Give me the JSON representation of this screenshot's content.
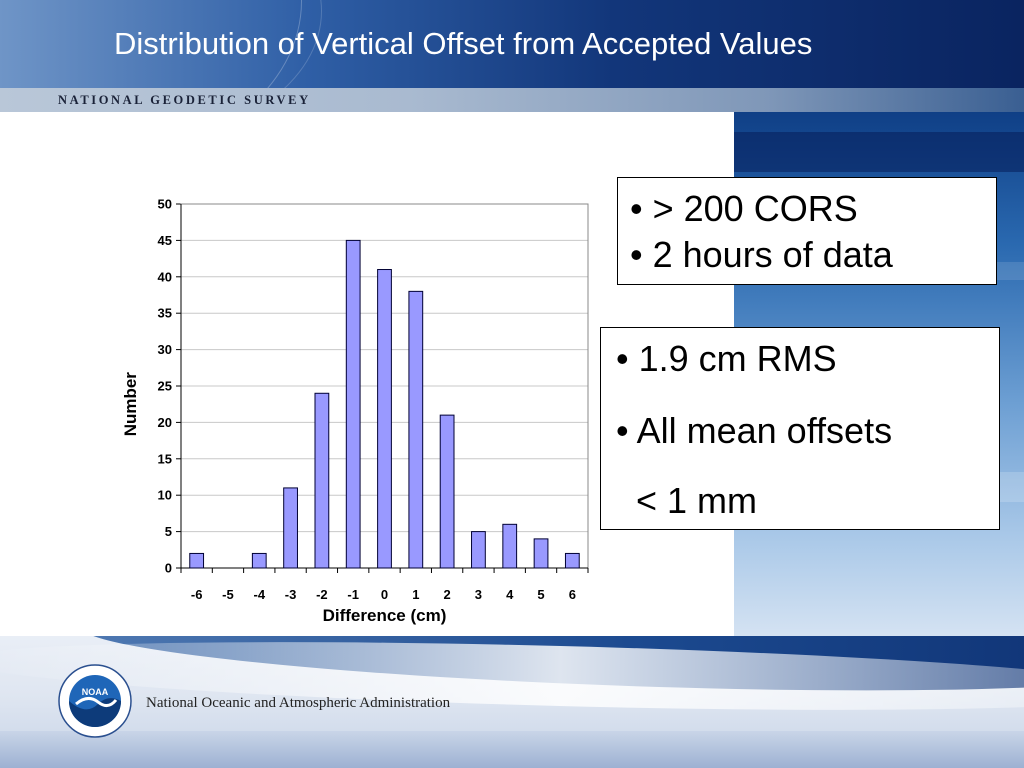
{
  "slide": {
    "title": "Distribution of Vertical Offset from Accepted Values",
    "agency_banner": "NATIONAL GEODETIC SURVEY",
    "footer_text": "National Oceanic and Atmospheric Administration",
    "logo_text": "NOAA"
  },
  "bullets_box1": [
    "• > 200 CORS",
    "• 2  hours of data"
  ],
  "bullets_box2": [
    "• 1.9 cm RMS",
    "• All mean offsets",
    "  < 1 mm"
  ],
  "colors": {
    "bar_fill": "#9999ff",
    "bar_stroke": "#000033",
    "header_dark": "#0a2460"
  },
  "chart_data": {
    "type": "bar",
    "categories": [
      "-6",
      "-5",
      "-4",
      "-3",
      "-2",
      "-1",
      "0",
      "1",
      "2",
      "3",
      "4",
      "5",
      "6"
    ],
    "values": [
      2,
      0,
      2,
      11,
      24,
      45,
      41,
      38,
      21,
      5,
      6,
      4,
      2
    ],
    "xlabel": "Difference (cm)",
    "ylabel": "Number",
    "ylim": [
      0,
      50
    ],
    "yticks": [
      "0",
      "5",
      "10",
      "15",
      "20",
      "25",
      "30",
      "35",
      "40",
      "45",
      "50"
    ],
    "grid": true,
    "legend": "none"
  }
}
